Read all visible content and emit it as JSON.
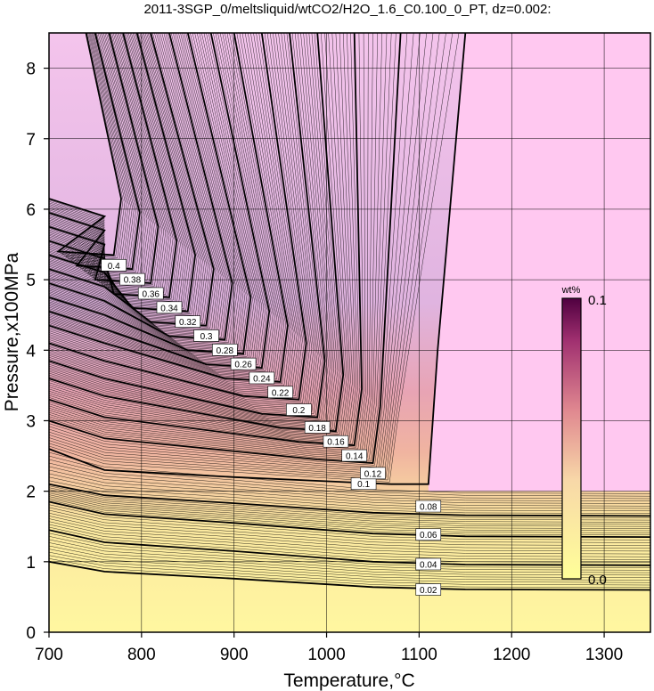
{
  "chart_data": {
    "type": "contour",
    "title": "2011-3SGP_0/meltsliquid/wtCO2/H2O_1.6_C0.100_0_PT, dz=0.002:",
    "xlabel": "Temperature,°C",
    "ylabel": "Pressure,x100MPa",
    "xlim": [
      700,
      1350
    ],
    "ylim": [
      0,
      8.5
    ],
    "xticks": [
      700,
      800,
      900,
      1000,
      1100,
      1200,
      1300
    ],
    "yticks": [
      0,
      1,
      2,
      3,
      4,
      5,
      6,
      7,
      8
    ],
    "grid": true,
    "contour_interval": 0.002,
    "colorbar": {
      "unit": "wt%",
      "min_label": "0.0",
      "max_label": "0.1",
      "min": 0.0,
      "max": 0.1,
      "colors": [
        "#ffff99",
        "#f0b0a0",
        "#b04060",
        "#600040"
      ]
    },
    "saturated_region_color": "#ffc8f0",
    "labeled_contours": [
      {
        "level": 0.02,
        "label": "0.02",
        "T_label": 1110,
        "P_label": 0.6
      },
      {
        "level": 0.04,
        "label": "0.04",
        "T_label": 1110,
        "P_label": 0.96
      },
      {
        "level": 0.06,
        "label": "0.06",
        "T_label": 1110,
        "P_label": 1.38
      },
      {
        "level": 0.08,
        "label": "0.08",
        "T_label": 1110,
        "P_label": 1.78
      },
      {
        "level": 0.1,
        "label": "0.1"
      },
      {
        "level": 0.12,
        "label": "0.12"
      },
      {
        "level": 0.14,
        "label": "0.14"
      },
      {
        "level": 0.16,
        "label": "0.16"
      },
      {
        "level": 0.18,
        "label": "0.18"
      },
      {
        "level": 0.2,
        "label": "0.2"
      },
      {
        "level": 0.22,
        "label": "0.22"
      },
      {
        "level": 0.24,
        "label": "0.24"
      },
      {
        "level": 0.26,
        "label": "0.26"
      },
      {
        "level": 0.28,
        "label": "0.28"
      },
      {
        "level": 0.3,
        "label": "0.3"
      },
      {
        "level": 0.32,
        "label": "0.32"
      },
      {
        "level": 0.34,
        "label": "0.34"
      },
      {
        "level": 0.36,
        "label": "0.36"
      },
      {
        "level": 0.38,
        "label": "0.38"
      },
      {
        "level": 0.4,
        "label": "0.4"
      }
    ],
    "contour_shape": {
      "corner_T_low_P": [
        [
          0.1,
          1070,
          2.1
        ],
        [
          0.12,
          1050,
          2.4
        ],
        [
          0.14,
          1030,
          2.65
        ],
        [
          0.16,
          1010,
          2.85
        ],
        [
          0.18,
          990,
          3.05
        ],
        [
          0.2,
          970,
          3.3
        ],
        [
          0.22,
          950,
          3.55
        ],
        [
          0.24,
          930,
          3.75
        ]
      ],
      "vertical_T_at_8": [
        [
          0.1,
          1150
        ],
        [
          0.12,
          1080
        ],
        [
          0.14,
          1030
        ],
        [
          0.16,
          990
        ],
        [
          0.18,
          960
        ],
        [
          0.2,
          930
        ],
        [
          0.22,
          900
        ],
        [
          0.24,
          875
        ],
        [
          0.26,
          850
        ],
        [
          0.28,
          830
        ],
        [
          0.3,
          810
        ],
        [
          0.32,
          795
        ],
        [
          0.34,
          780
        ],
        [
          0.36,
          765
        ],
        [
          0.38,
          750
        ],
        [
          0.4,
          740
        ]
      ],
      "left_edge_P": [
        [
          0.02,
          1.0
        ],
        [
          0.04,
          1.45
        ],
        [
          0.06,
          1.85
        ],
        [
          0.08,
          2.1
        ],
        [
          0.1,
          2.6
        ],
        [
          0.12,
          3.0
        ],
        [
          0.14,
          3.3
        ],
        [
          0.16,
          3.6
        ],
        [
          0.18,
          3.85
        ],
        [
          0.2,
          4.1
        ],
        [
          0.22,
          4.35
        ],
        [
          0.24,
          4.55
        ]
      ],
      "right_edge_P": [
        [
          0.02,
          0.6
        ],
        [
          0.04,
          0.95
        ],
        [
          0.06,
          1.35
        ],
        [
          0.08,
          1.65
        ],
        [
          0.1,
          2.0
        ]
      ]
    }
  }
}
